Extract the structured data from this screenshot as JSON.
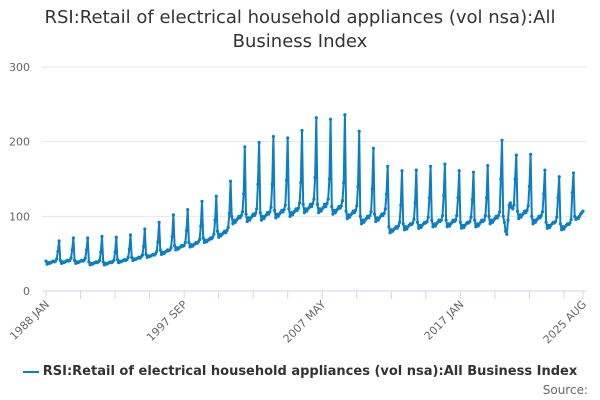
{
  "chart_data": {
    "type": "line",
    "title": "RSI:Retail of electrical household appliances (vol nsa):All Business Index",
    "xlabel": "",
    "ylabel": "",
    "ylim": [
      0,
      300
    ],
    "yticks": [
      "0",
      "100",
      "200",
      "300"
    ],
    "xtick_labels": [
      "1988 JAN",
      "1997 SEP",
      "2007 MAY",
      "2017 JAN",
      "2025 AUG"
    ],
    "grid": true,
    "legend_position": "bottom",
    "start": "1988 JAN",
    "end": "2025 AUG",
    "frequency": "monthly",
    "series": [
      {
        "name": "RSI:Retail of electrical household appliances (vol nsa):All Business Index",
        "color": "#0b7fc4",
        "values_by_year": {
          "1988": [
            40,
            36,
            38,
            37,
            38,
            39,
            40,
            39,
            40,
            43,
            53,
            67
          ],
          "1989": [
            41,
            37,
            39,
            38,
            39,
            40,
            41,
            40,
            41,
            44,
            55,
            71
          ],
          "1990": [
            41,
            37,
            39,
            38,
            39,
            40,
            41,
            40,
            41,
            44,
            55,
            71
          ],
          "1991": [
            39,
            35,
            37,
            36,
            37,
            38,
            39,
            38,
            39,
            41,
            52,
            73
          ],
          "1992": [
            39,
            35,
            37,
            36,
            37,
            38,
            39,
            38,
            39,
            41,
            52,
            72
          ],
          "1993": [
            42,
            38,
            40,
            39,
            40,
            41,
            42,
            41,
            42,
            45,
            56,
            75
          ],
          "1994": [
            45,
            41,
            43,
            42,
            43,
            44,
            45,
            44,
            46,
            48,
            60,
            83
          ],
          "1995": [
            49,
            45,
            47,
            46,
            47,
            48,
            49,
            48,
            50,
            53,
            66,
            92
          ],
          "1996": [
            55,
            49,
            52,
            50,
            52,
            53,
            55,
            54,
            55,
            58,
            73,
            102
          ],
          "1997": [
            61,
            55,
            58,
            56,
            58,
            59,
            61,
            60,
            61,
            65,
            81,
            109
          ],
          "1998": [
            65,
            59,
            62,
            60,
            62,
            63,
            65,
            64,
            66,
            69,
            87,
            120
          ],
          "1999": [
            71,
            65,
            68,
            66,
            68,
            69,
            71,
            70,
            72,
            76,
            95,
            127
          ],
          "2000": [
            80,
            72,
            76,
            74,
            76,
            78,
            80,
            78,
            81,
            85,
            104,
            147
          ],
          "2001": [
            100,
            90,
            95,
            92,
            95,
            97,
            100,
            98,
            101,
            106,
            130,
            193
          ],
          "2002": [
            103,
            93,
            98,
            95,
            98,
            100,
            103,
            101,
            104,
            110,
            143,
            199
          ],
          "2003": [
            105,
            95,
            100,
            97,
            100,
            102,
            105,
            103,
            106,
            112,
            143,
            207
          ],
          "2004": [
            108,
            98,
            103,
            100,
            103,
            105,
            108,
            106,
            109,
            115,
            148,
            205
          ],
          "2005": [
            110,
            100,
            105,
            102,
            105,
            107,
            110,
            108,
            111,
            118,
            145,
            215
          ],
          "2006": [
            116,
            105,
            110,
            107,
            110,
            112,
            116,
            113,
            117,
            123,
            152,
            232
          ],
          "2007": [
            116,
            105,
            110,
            107,
            110,
            112,
            116,
            113,
            117,
            123,
            150,
            230
          ],
          "2008": [
            113,
            103,
            108,
            105,
            108,
            110,
            113,
            111,
            114,
            121,
            145,
            236
          ],
          "2009": [
            107,
            97,
            102,
            99,
            102,
            104,
            107,
            105,
            108,
            114,
            140,
            214
          ],
          "2010": [
            100,
            90,
            95,
            92,
            95,
            97,
            100,
            98,
            101,
            106,
            137,
            191
          ],
          "2011": [
            103,
            93,
            98,
            95,
            98,
            100,
            103,
            101,
            104,
            110,
            130,
            167
          ],
          "2012": [
            86,
            78,
            82,
            80,
            82,
            84,
            86,
            84,
            87,
            92,
            115,
            161
          ],
          "2013": [
            90,
            82,
            86,
            83,
            86,
            88,
            90,
            89,
            91,
            96,
            118,
            162
          ],
          "2014": [
            92,
            84,
            88,
            85,
            88,
            90,
            92,
            91,
            93,
            99,
            125,
            167
          ],
          "2015": [
            95,
            86,
            90,
            87,
            90,
            92,
            95,
            93,
            95,
            101,
            128,
            170
          ],
          "2016": [
            95,
            86,
            90,
            87,
            90,
            92,
            95,
            93,
            95,
            101,
            125,
            161
          ],
          "2017": [
            92,
            84,
            88,
            85,
            88,
            90,
            92,
            91,
            93,
            99,
            122,
            159
          ],
          "2018": [
            95,
            86,
            90,
            87,
            90,
            92,
            95,
            93,
            95,
            101,
            125,
            168
          ],
          "2019": [
            100,
            90,
            95,
            92,
            95,
            97,
            100,
            98,
            101,
            106,
            150,
            202
          ],
          "2020": [
            100,
            92,
            80,
            76,
            95,
            115,
            118,
            112,
            110,
            115,
            150,
            182
          ],
          "2021": [
            107,
            97,
            102,
            99,
            102,
            104,
            107,
            105,
            108,
            114,
            140,
            183
          ],
          "2022": [
            100,
            90,
            95,
            92,
            95,
            97,
            100,
            98,
            101,
            106,
            130,
            162
          ],
          "2023": [
            92,
            84,
            88,
            85,
            88,
            90,
            92,
            91,
            93,
            99,
            125,
            153
          ],
          "2024": [
            90,
            82,
            86,
            83,
            86,
            88,
            90,
            89,
            91,
            96,
            132,
            158
          ],
          "2025": [
            100,
            96,
            98,
            97,
            100,
            103,
            105,
            107
          ]
        }
      }
    ]
  },
  "legend": {
    "label": "RSI:Retail of electrical household appliances (vol nsa):All Business Index"
  },
  "source_label": "Source:"
}
